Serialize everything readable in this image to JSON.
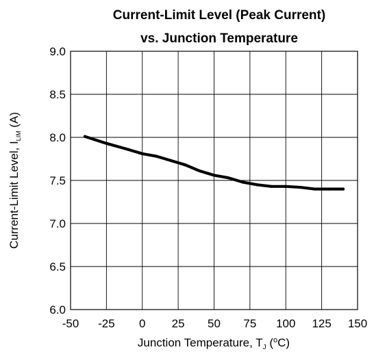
{
  "chart_data": {
    "type": "line",
    "title": "Current-Limit Level (Peak Current)",
    "subtitle": "vs. Junction Temperature",
    "xlabel": {
      "text": "Junction Temperature, T",
      "subscript": "J",
      "unit_open": " (",
      "unit_sup": "o",
      "unit_close": "C)"
    },
    "ylabel": {
      "text": "Current-Limit Level, I",
      "subscript": "LIM",
      "unit": " (A)"
    },
    "xlim": [
      -50,
      150
    ],
    "ylim": [
      6.0,
      9.0
    ],
    "xticks": [
      "-50",
      "-25",
      "0",
      "25",
      "50",
      "75",
      "100",
      "125",
      "150"
    ],
    "yticks": [
      "6.0",
      "6.5",
      "7.0",
      "7.5",
      "8.0",
      "8.5",
      "9.0"
    ],
    "grid": true,
    "series": [
      {
        "x": [
          -40,
          -25,
          -10,
          0,
          10,
          20,
          30,
          40,
          50,
          60,
          70,
          80,
          90,
          100,
          110,
          120,
          130,
          140
        ],
        "y": [
          8.01,
          7.93,
          7.86,
          7.81,
          7.78,
          7.73,
          7.68,
          7.61,
          7.56,
          7.53,
          7.48,
          7.45,
          7.43,
          7.43,
          7.42,
          7.4,
          7.4,
          7.4
        ]
      }
    ]
  },
  "colors": {
    "line": "#000000",
    "grid": "#000000",
    "background": "#ffffff"
  }
}
